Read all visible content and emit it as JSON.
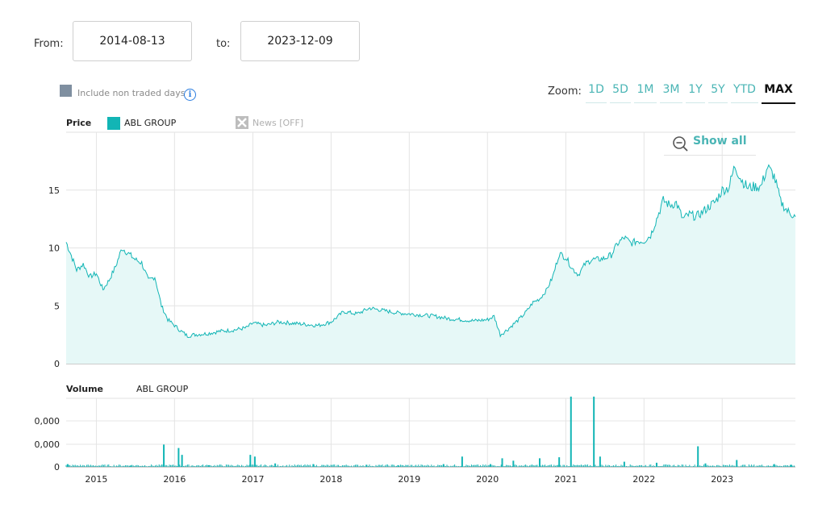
{
  "range": {
    "from_label": "From:",
    "from_value": "2014-08-13",
    "to_label": "to:",
    "to_value": "2023-12-09"
  },
  "options": {
    "non_traded_label": "Include non traded days",
    "info_glyph": "i",
    "checkbox_color": "#7f8fa0"
  },
  "zoom": {
    "label": "Zoom:",
    "buttons": [
      "1D",
      "5D",
      "1M",
      "3M",
      "1Y",
      "5Y",
      "YTD",
      "MAX"
    ],
    "active": "MAX"
  },
  "price_panel": {
    "title": "Price",
    "series_name": "ABL GROUP",
    "series_color": "#12b5b5",
    "news_label": "News [OFF]",
    "show_all_label": "Show all"
  },
  "volume_panel": {
    "title": "Volume",
    "series_name": "ABL GROUP"
  },
  "chart_data": [
    {
      "type": "area",
      "title": "Price",
      "series": [
        {
          "name": "ABL GROUP",
          "color": "#12b5b5",
          "points": [
            [
              "2014-08-13",
              10.5
            ],
            [
              "2014-09-01",
              9.6
            ],
            [
              "2014-10-01",
              8.1
            ],
            [
              "2014-11-01",
              8.6
            ],
            [
              "2014-12-01",
              7.5
            ],
            [
              "2015-01-01",
              7.8
            ],
            [
              "2015-02-01",
              6.4
            ],
            [
              "2015-03-01",
              7.2
            ],
            [
              "2015-04-01",
              8.4
            ],
            [
              "2015-05-01",
              10.0
            ],
            [
              "2015-06-01",
              9.5
            ],
            [
              "2015-07-01",
              9.0
            ],
            [
              "2015-08-01",
              8.7
            ],
            [
              "2015-09-01",
              7.2
            ],
            [
              "2015-10-01",
              7.5
            ],
            [
              "2015-11-01",
              5.0
            ],
            [
              "2015-12-01",
              3.8
            ],
            [
              "2016-01-01",
              3.3
            ],
            [
              "2016-02-01",
              2.8
            ],
            [
              "2016-03-01",
              2.4
            ],
            [
              "2016-04-01",
              2.5
            ],
            [
              "2016-06-01",
              2.6
            ],
            [
              "2016-08-01",
              2.8
            ],
            [
              "2016-10-01",
              2.9
            ],
            [
              "2016-12-01",
              3.1
            ],
            [
              "2017-01-01",
              3.5
            ],
            [
              "2017-03-01",
              3.3
            ],
            [
              "2017-05-01",
              3.6
            ],
            [
              "2017-07-01",
              3.5
            ],
            [
              "2017-09-01",
              3.4
            ],
            [
              "2017-11-01",
              3.3
            ],
            [
              "2018-01-01",
              3.6
            ],
            [
              "2018-03-01",
              4.5
            ],
            [
              "2018-05-01",
              4.3
            ],
            [
              "2018-07-01",
              4.8
            ],
            [
              "2018-09-01",
              4.6
            ],
            [
              "2018-11-01",
              4.4
            ],
            [
              "2019-01-01",
              4.3
            ],
            [
              "2019-03-01",
              4.2
            ],
            [
              "2019-05-01",
              4.1
            ],
            [
              "2019-07-01",
              3.9
            ],
            [
              "2019-09-01",
              3.8
            ],
            [
              "2019-11-01",
              3.7
            ],
            [
              "2020-01-01",
              3.8
            ],
            [
              "2020-02-01",
              4.1
            ],
            [
              "2020-03-01",
              2.5
            ],
            [
              "2020-04-01",
              2.9
            ],
            [
              "2020-05-01",
              3.4
            ],
            [
              "2020-06-01",
              3.9
            ],
            [
              "2020-07-01",
              4.5
            ],
            [
              "2020-08-01",
              5.3
            ],
            [
              "2020-09-01",
              5.6
            ],
            [
              "2020-10-01",
              6.3
            ],
            [
              "2020-11-01",
              7.5
            ],
            [
              "2020-12-01",
              9.5
            ],
            [
              "2021-01-01",
              9.2
            ],
            [
              "2021-02-01",
              8.2
            ],
            [
              "2021-03-01",
              7.7
            ],
            [
              "2021-04-01",
              8.6
            ],
            [
              "2021-05-01",
              9.0
            ],
            [
              "2021-06-01",
              9.0
            ],
            [
              "2021-07-01",
              9.1
            ],
            [
              "2021-08-01",
              9.4
            ],
            [
              "2021-09-01",
              10.4
            ],
            [
              "2021-10-01",
              10.9
            ],
            [
              "2021-11-01",
              10.4
            ],
            [
              "2021-12-01",
              10.6
            ],
            [
              "2022-01-01",
              10.6
            ],
            [
              "2022-02-01",
              11.1
            ],
            [
              "2022-03-01",
              12.5
            ],
            [
              "2022-04-01",
              14.1
            ],
            [
              "2022-05-01",
              13.7
            ],
            [
              "2022-06-01",
              13.9
            ],
            [
              "2022-07-01",
              12.5
            ],
            [
              "2022-08-01",
              12.9
            ],
            [
              "2022-09-01",
              12.7
            ],
            [
              "2022-10-01",
              13.1
            ],
            [
              "2022-11-01",
              13.6
            ],
            [
              "2022-12-01",
              14.0
            ],
            [
              "2023-01-01",
              15.0
            ],
            [
              "2023-02-01",
              15.2
            ],
            [
              "2023-03-01",
              17.1
            ],
            [
              "2023-04-01",
              15.9
            ],
            [
              "2023-05-01",
              15.2
            ],
            [
              "2023-06-01",
              15.3
            ],
            [
              "2023-07-01",
              15.3
            ],
            [
              "2023-08-01",
              17.0
            ],
            [
              "2023-09-01",
              16.2
            ],
            [
              "2023-10-01",
              14.0
            ],
            [
              "2023-11-01",
              13.2
            ],
            [
              "2023-12-09",
              12.7
            ]
          ]
        }
      ],
      "x_range": [
        "2014-08-13",
        "2023-12-09"
      ],
      "ylim": [
        0,
        20
      ],
      "y_ticks": [
        0,
        5,
        10,
        15
      ],
      "x_ticks": [
        "2015",
        "2016",
        "2017",
        "2018",
        "2019",
        "2020",
        "2021",
        "2022",
        "2023"
      ],
      "grid": true
    },
    {
      "type": "bar",
      "title": "Volume",
      "series_name": "ABL GROUP",
      "y_tick_labels": [
        "0",
        "0,000",
        "0,000"
      ],
      "spikes": [
        {
          "date": "2014-08-20",
          "value": 0.08
        },
        {
          "date": "2015-06-10",
          "value": 0.04
        },
        {
          "date": "2015-11-12",
          "value": 0.65
        },
        {
          "date": "2016-01-20",
          "value": 0.55
        },
        {
          "date": "2016-02-05",
          "value": 0.35
        },
        {
          "date": "2016-06-10",
          "value": 0.05
        },
        {
          "date": "2016-12-20",
          "value": 0.35
        },
        {
          "date": "2017-01-10",
          "value": 0.3
        },
        {
          "date": "2017-04-15",
          "value": 0.1
        },
        {
          "date": "2017-10-10",
          "value": 0.08
        },
        {
          "date": "2018-06-15",
          "value": 0.06
        },
        {
          "date": "2018-11-10",
          "value": 0.05
        },
        {
          "date": "2019-06-10",
          "value": 0.08
        },
        {
          "date": "2019-09-05",
          "value": 0.3
        },
        {
          "date": "2020-01-15",
          "value": 0.08
        },
        {
          "date": "2020-03-10",
          "value": 0.25
        },
        {
          "date": "2020-05-01",
          "value": 0.18
        },
        {
          "date": "2020-09-01",
          "value": 0.25
        },
        {
          "date": "2020-12-01",
          "value": 0.28
        },
        {
          "date": "2021-01-25",
          "value": 2.05
        },
        {
          "date": "2021-05-12",
          "value": 2.05
        },
        {
          "date": "2021-06-10",
          "value": 0.3
        },
        {
          "date": "2021-10-01",
          "value": 0.15
        },
        {
          "date": "2022-03-01",
          "value": 0.12
        },
        {
          "date": "2022-09-10",
          "value": 0.6
        },
        {
          "date": "2022-10-15",
          "value": 0.1
        },
        {
          "date": "2023-03-10",
          "value": 0.2
        },
        {
          "date": "2023-09-01",
          "value": 0.08
        },
        {
          "date": "2023-11-20",
          "value": 0.06
        }
      ],
      "ylim": [
        0,
        2.0
      ]
    }
  ]
}
